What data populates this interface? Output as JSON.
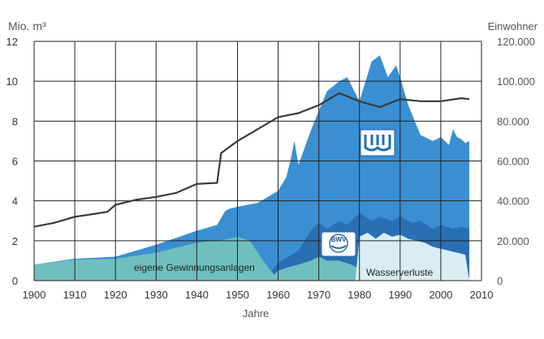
{
  "chart_data": {
    "type": "area",
    "title": "",
    "ylabel_left": "Mio. m³",
    "ylabel_right": "Einwohner",
    "xlabel": "Jahre",
    "xlim": [
      1900,
      2010
    ],
    "ylim_left": [
      0,
      12
    ],
    "ylim_right": [
      0,
      120000
    ],
    "x_ticks": [
      "1900",
      "1910",
      "1920",
      "1930",
      "1940",
      "1950",
      "1960",
      "1970",
      "1980",
      "1990",
      "2000",
      "2010"
    ],
    "y_ticks_left": [
      "0",
      "2",
      "4",
      "6",
      "8",
      "10",
      "12"
    ],
    "y_ticks_right": [
      "0",
      "20.000",
      "40.000",
      "60.000",
      "80.000",
      "100.000",
      "120.000"
    ],
    "grid": true,
    "annotations": {
      "eigene": "eigene Gewinnungsanlagen",
      "verluste": "Wasserverluste",
      "bwv": "BWV"
    },
    "colors": {
      "total": "#3a8fd3",
      "bwv": "#2a6fb4",
      "eigene": "#6ec0bf",
      "verluste": "#d9eef2",
      "population": "#3a3a3a",
      "grid": "#222222"
    },
    "series": [
      {
        "key": "total",
        "unit": "Mio. m³",
        "x": [
          1900,
          1910,
          1920,
          1930,
          1940,
          1945,
          1947,
          1948,
          1950,
          1955,
          1960,
          1962,
          1963,
          1964,
          1965,
          1968,
          1970,
          1972,
          1975,
          1977,
          1980,
          1983,
          1985,
          1987,
          1989,
          1990,
          1992,
          1995,
          1998,
          2000,
          2002,
          2003,
          2004,
          2005,
          2006,
          2007
        ],
        "y": [
          0.8,
          1.1,
          1.2,
          1.8,
          2.5,
          2.8,
          3.5,
          3.6,
          3.7,
          3.9,
          4.5,
          5.2,
          6.0,
          7.0,
          5.8,
          7.5,
          8.5,
          9.5,
          10.0,
          10.2,
          9.0,
          11.0,
          11.3,
          10.2,
          10.8,
          10.2,
          8.8,
          7.3,
          7.0,
          7.2,
          6.8,
          7.6,
          7.2,
          7.1,
          6.9,
          7.0
        ]
      },
      {
        "key": "bwv",
        "unit": "Mio. m³",
        "x": [
          1955,
          1958,
          1960,
          1965,
          1968,
          1970,
          1972,
          1975,
          1977,
          1980,
          1983,
          1985,
          1988,
          1990,
          1993,
          1995,
          1998,
          2000,
          2003,
          2005,
          2007
        ],
        "y": [
          0,
          0.4,
          0.9,
          1.5,
          2.5,
          2.9,
          2.6,
          3.0,
          2.8,
          3.4,
          3.0,
          3.2,
          3.0,
          3.2,
          2.9,
          3.0,
          2.6,
          2.8,
          2.6,
          2.7,
          2.6
        ]
      },
      {
        "key": "eigene",
        "unit": "Mio. m³",
        "x": [
          1900,
          1910,
          1920,
          1930,
          1940,
          1945,
          1948,
          1950,
          1953,
          1955,
          1957,
          1959,
          1960,
          1963,
          1965,
          1968,
          1970,
          1972,
          1975,
          1978,
          1980,
          1985,
          1990,
          1995,
          2000,
          2005,
          2007
        ],
        "y": [
          0.8,
          1.05,
          1.1,
          1.4,
          1.9,
          2.0,
          2.1,
          2.2,
          2.0,
          1.4,
          0.8,
          0.3,
          0.5,
          0.7,
          0.8,
          1.0,
          1.2,
          1.0,
          1.0,
          0.8,
          0.6,
          0.5,
          0.3,
          0.2,
          0.2,
          0.2,
          0.15
        ]
      },
      {
        "key": "verluste",
        "unit": "Mio. m³",
        "x": [
          1979,
          1980,
          1982,
          1984,
          1986,
          1988,
          1990,
          1992,
          1994,
          1996,
          1998,
          2000,
          2002,
          2004,
          2006,
          2007
        ],
        "y": [
          0,
          2.2,
          2.4,
          2.1,
          2.4,
          2.2,
          2.3,
          2.1,
          2.0,
          1.9,
          1.7,
          1.6,
          1.5,
          1.4,
          1.3,
          0
        ]
      },
      {
        "key": "population",
        "unit": "Einwohner",
        "x": [
          1900,
          1905,
          1910,
          1915,
          1918,
          1920,
          1925,
          1930,
          1935,
          1940,
          1945,
          1946,
          1950,
          1955,
          1960,
          1965,
          1970,
          1975,
          1980,
          1985,
          1990,
          1995,
          2000,
          2005,
          2007
        ],
        "y": [
          27000,
          29000,
          32000,
          33500,
          34500,
          38000,
          40500,
          42000,
          44000,
          48500,
          49000,
          64000,
          70000,
          76000,
          82000,
          84000,
          88000,
          94000,
          90000,
          87000,
          91000,
          90000,
          90000,
          91500,
          91000
        ]
      }
    ]
  }
}
